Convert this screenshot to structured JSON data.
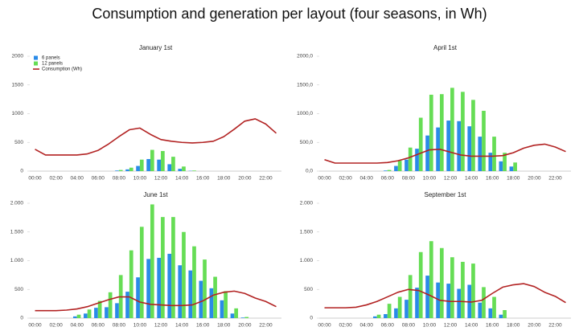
{
  "title": "Consumption and generation per layout (four seasons, in Wh)",
  "chart_data": [
    {
      "type": "bar",
      "title": "January 1st",
      "categories": [
        "00:00",
        null,
        "02:00",
        null,
        "04:00",
        null,
        "06:00",
        null,
        "08:00",
        null,
        "10:00",
        null,
        "12:00",
        null,
        "14:00",
        null,
        "16:00",
        null,
        "18:00",
        null,
        "20:00",
        null,
        "22:00",
        null
      ],
      "series": [
        {
          "name": "6 panels",
          "type": "bar",
          "color": "#2a8be8",
          "values": [
            0,
            0,
            0,
            0,
            0,
            0,
            0,
            0,
            10,
            30,
            90,
            210,
            200,
            120,
            40,
            5,
            0,
            0,
            0,
            0,
            0,
            0,
            0,
            0
          ]
        },
        {
          "name": "12 panels",
          "type": "bar",
          "color": "#66dd55",
          "values": [
            0,
            0,
            0,
            0,
            0,
            0,
            0,
            0,
            20,
            60,
            200,
            370,
            350,
            250,
            80,
            10,
            0,
            0,
            0,
            0,
            0,
            0,
            0,
            0
          ]
        },
        {
          "name": "Consumption (Wh)",
          "type": "line",
          "color": "#b22222",
          "values": [
            380,
            280,
            280,
            280,
            280,
            300,
            360,
            470,
            600,
            720,
            750,
            640,
            550,
            520,
            500,
            490,
            500,
            520,
            600,
            730,
            870,
            910,
            820,
            660
          ]
        }
      ],
      "ylim": [
        0,
        2000
      ],
      "yticks": [
        0,
        500,
        1000,
        1500,
        2000
      ],
      "legend": "top-left"
    },
    {
      "type": "bar",
      "title": "April 1st",
      "categories": [
        "00:00",
        null,
        "02:00",
        null,
        "04:00",
        null,
        "06:00",
        null,
        "08:00",
        null,
        "10:00",
        null,
        "12:00",
        null,
        "14:00",
        null,
        "16:00",
        null,
        "18:00",
        null,
        "20:00",
        null,
        "22:00",
        null
      ],
      "series": [
        {
          "name": "6 panels",
          "type": "bar",
          "color": "#2a8be8",
          "values": [
            0,
            0,
            0,
            0,
            0,
            0,
            10,
            90,
            200,
            390,
            620,
            760,
            880,
            870,
            780,
            600,
            320,
            170,
            80,
            0,
            0,
            0,
            0,
            0
          ]
        },
        {
          "name": "12 panels",
          "type": "bar",
          "color": "#66dd55",
          "values": [
            0,
            0,
            0,
            0,
            0,
            0,
            20,
            180,
            410,
            930,
            1330,
            1340,
            1450,
            1380,
            1240,
            1050,
            600,
            320,
            150,
            0,
            0,
            0,
            0,
            0
          ]
        },
        {
          "name": "Consumption (Wh)",
          "type": "line",
          "color": "#b22222",
          "values": [
            200,
            140,
            140,
            140,
            140,
            140,
            150,
            180,
            230,
            300,
            370,
            380,
            330,
            280,
            260,
            260,
            260,
            270,
            320,
            400,
            450,
            470,
            420,
            340
          ]
        }
      ],
      "ylim": [
        0,
        2000
      ],
      "yticks": [
        {
          "value": 0,
          "label": "0,0"
        },
        {
          "value": 500,
          "label": "500,0"
        },
        {
          "value": 1000,
          "label": "1000,0"
        },
        {
          "value": 1500,
          "label": "1500,0"
        },
        {
          "value": 2000,
          "label": "2000,0"
        }
      ]
    },
    {
      "type": "bar",
      "title": "June 1st",
      "categories": [
        "00:00",
        null,
        "02:00",
        null,
        "04:00",
        null,
        "06:00",
        null,
        "08:00",
        null,
        "10:00",
        null,
        "12:00",
        null,
        "14:00",
        null,
        "16:00",
        null,
        "18:00",
        null,
        "20:00",
        null,
        "22:00",
        null
      ],
      "series": [
        {
          "name": "6 panels",
          "type": "bar",
          "color": "#2a8be8",
          "values": [
            0,
            0,
            0,
            0,
            30,
            80,
            180,
            190,
            260,
            460,
            710,
            1030,
            1050,
            1120,
            920,
            830,
            650,
            520,
            310,
            80,
            10,
            0,
            0,
            0
          ]
        },
        {
          "name": "12 panels",
          "type": "bar",
          "color": "#66dd55",
          "values": [
            0,
            0,
            0,
            0,
            60,
            150,
            300,
            450,
            750,
            1180,
            1590,
            1980,
            1760,
            1760,
            1500,
            1250,
            1020,
            720,
            470,
            170,
            20,
            0,
            0,
            0
          ]
        },
        {
          "name": "Consumption (Wh)",
          "type": "line",
          "color": "#b22222",
          "values": [
            130,
            130,
            130,
            140,
            160,
            200,
            260,
            320,
            370,
            370,
            280,
            240,
            230,
            220,
            220,
            230,
            300,
            400,
            450,
            470,
            430,
            350,
            290,
            200
          ]
        }
      ],
      "ylim": [
        0,
        2000
      ],
      "yticks": [
        0,
        500,
        {
          "value": 1000,
          "label": "1.000"
        },
        {
          "value": 1500,
          "label": "1.500"
        },
        {
          "value": 2000,
          "label": "2.000"
        }
      ]
    },
    {
      "type": "bar",
      "title": "September 1st",
      "categories": [
        "00:00",
        null,
        "02:00",
        null,
        "04:00",
        null,
        "06:00",
        null,
        "08:00",
        null,
        "10:00",
        null,
        "12:00",
        null,
        "14:00",
        null,
        "16:00",
        null,
        "18:00",
        null,
        "20:00",
        null,
        "22:00",
        null
      ],
      "series": [
        {
          "name": "6 panels",
          "type": "bar",
          "color": "#2a8be8",
          "values": [
            0,
            0,
            0,
            0,
            0,
            30,
            70,
            170,
            320,
            530,
            740,
            620,
            600,
            510,
            580,
            270,
            170,
            60,
            0,
            0,
            0,
            0,
            0,
            0
          ]
        },
        {
          "name": "12 panels",
          "type": "bar",
          "color": "#66dd55",
          "values": [
            0,
            0,
            0,
            0,
            0,
            60,
            250,
            370,
            750,
            1150,
            1340,
            1220,
            1060,
            980,
            950,
            540,
            370,
            140,
            0,
            0,
            0,
            0,
            0,
            0
          ]
        },
        {
          "name": "Consumption (Wh)",
          "type": "line",
          "color": "#b22222",
          "values": [
            180,
            180,
            180,
            190,
            230,
            290,
            370,
            450,
            500,
            480,
            400,
            310,
            290,
            290,
            280,
            310,
            430,
            540,
            580,
            600,
            550,
            450,
            380,
            270
          ]
        }
      ],
      "ylim": [
        0,
        2000
      ],
      "yticks": [
        0,
        500,
        {
          "value": 1000,
          "label": "1.000"
        },
        {
          "value": 1500,
          "label": "1.500"
        },
        {
          "value": 2000,
          "label": "2.000"
        }
      ]
    }
  ]
}
